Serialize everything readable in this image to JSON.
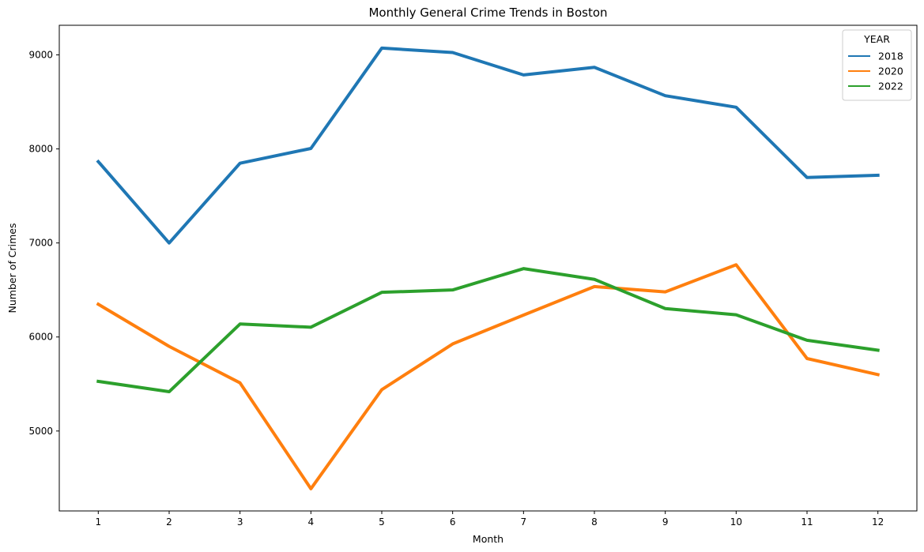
{
  "chart_data": {
    "type": "line",
    "title": "Monthly General Crime Trends in Boston",
    "xlabel": "Month",
    "ylabel": "Number of Crimes",
    "x": [
      1,
      2,
      3,
      4,
      5,
      6,
      7,
      8,
      9,
      10,
      11,
      12
    ],
    "x_ticks": [
      "1",
      "2",
      "3",
      "4",
      "5",
      "6",
      "7",
      "8",
      "9",
      "10",
      "11",
      "12"
    ],
    "y_ticks": [
      "5000",
      "6000",
      "7000",
      "8000",
      "9000"
    ],
    "y_tick_values": [
      5000,
      6000,
      7000,
      8000,
      9000
    ],
    "xlim": [
      0.45,
      12.55
    ],
    "ylim": [
      4150,
      9315
    ],
    "grid": false,
    "legend": {
      "title": "YEAR",
      "placement": "top-right"
    },
    "series": [
      {
        "name": "2018",
        "color": "#1f77b4",
        "values": [
          7865,
          7000,
          7848,
          8005,
          9072,
          9025,
          8787,
          8868,
          8566,
          8443,
          7696,
          7720
        ]
      },
      {
        "name": "2020",
        "color": "#ff7f0e",
        "values": [
          6348,
          5900,
          5512,
          4386,
          5440,
          5926,
          6233,
          6536,
          6480,
          6768,
          5771,
          5600
        ]
      },
      {
        "name": "2022",
        "color": "#2ca02c",
        "values": [
          5528,
          5418,
          6138,
          6104,
          6475,
          6500,
          6727,
          6613,
          6302,
          6236,
          5965,
          5859
        ]
      }
    ]
  }
}
